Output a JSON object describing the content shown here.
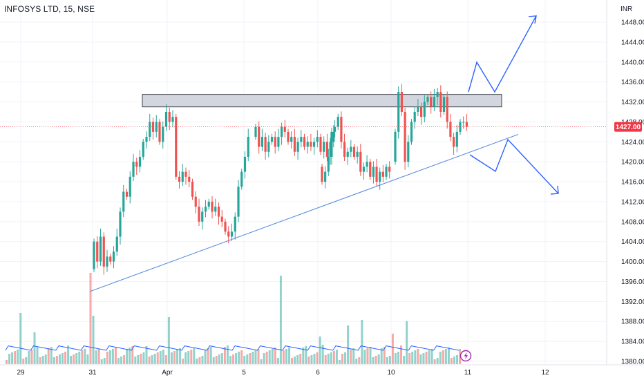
{
  "header": {
    "title": "INFOSYS LTD, 15, NSE"
  },
  "chart_data": {
    "type": "candlestick",
    "currency": "INR",
    "current_price": {
      "value": 1427,
      "label": "1427.00"
    },
    "y_ticks": [
      "1448.00",
      "1444.00",
      "1440.00",
      "1436.00",
      "1432.00",
      "1428.00",
      "1424.00",
      "1420.00",
      "1416.00",
      "1412.00",
      "1408.00",
      "1404.00",
      "1400.00",
      "1396.00",
      "1392.00",
      "1388.00",
      "1384.00",
      "1380.00"
    ],
    "x_ticks": [
      "29",
      "31",
      "Apr",
      "5",
      "6",
      "10",
      "11",
      "12"
    ],
    "ylim": [
      1380,
      1450
    ],
    "grid": true,
    "resistance_zone": {
      "low": 1431,
      "high": 1433.5
    },
    "trendline": {
      "from": 1394,
      "to": 1425.5
    },
    "colors": {
      "up": "#26a69a",
      "down": "#ef5350",
      "trendline": "#5b8de0",
      "projection": "#2962ff",
      "zone": "#d1d4dc",
      "current": "#f23645",
      "volume_ma": "#2962ff"
    }
  }
}
